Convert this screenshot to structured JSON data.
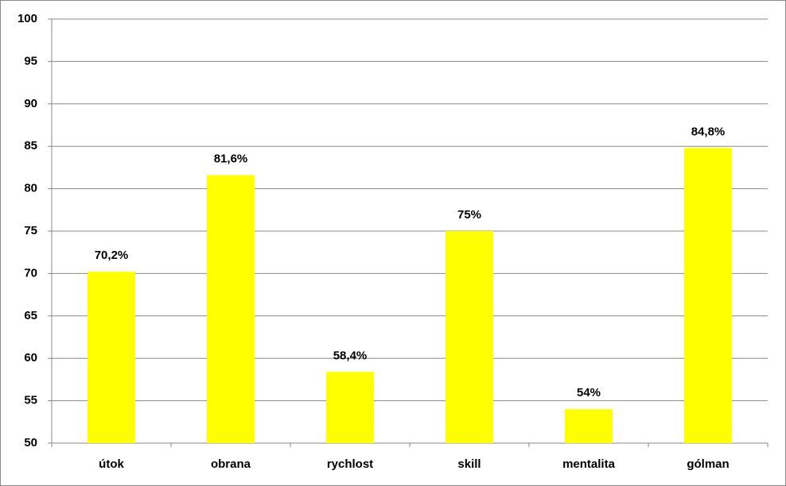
{
  "chart_data": {
    "type": "bar",
    "categories": [
      "útok",
      "obrana",
      "rychlost",
      "skill",
      "mentalita",
      "gólman"
    ],
    "values": [
      70.2,
      81.6,
      58.4,
      75,
      54,
      84.8
    ],
    "value_labels": [
      "70,2%",
      "81,6%",
      "58,4%",
      "75%",
      "54%",
      "84,8%"
    ],
    "color": "#ffff00",
    "ylim": [
      50,
      100
    ],
    "yticks": [
      50,
      55,
      60,
      65,
      70,
      75,
      80,
      85,
      90,
      95,
      100
    ],
    "grid": true
  }
}
